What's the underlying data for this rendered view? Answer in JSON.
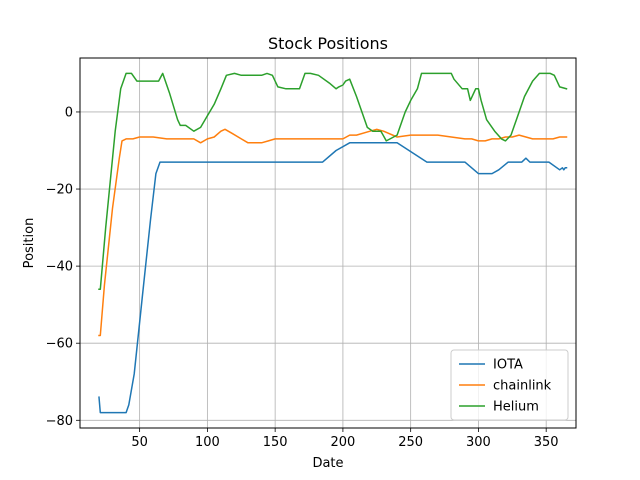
{
  "chart_data": {
    "type": "line",
    "title": "Stock Positions",
    "xlabel": "Date",
    "ylabel": "Position",
    "xlim": [
      6,
      372
    ],
    "ylim": [
      -82,
      14
    ],
    "xticks": [
      50,
      100,
      150,
      200,
      250,
      300,
      350
    ],
    "yticks": [
      -80,
      -60,
      -40,
      -20,
      0
    ],
    "grid": true,
    "legend_position": "lower right",
    "colors": {
      "IOTA": "#1f77b4",
      "chainlink": "#ff7f0e",
      "Helium": "#2ca02c"
    },
    "series": [
      {
        "name": "IOTA",
        "x": [
          20,
          21,
          40,
          42,
          46,
          52,
          58,
          62,
          65,
          67,
          100,
          150,
          185,
          195,
          205,
          240,
          262,
          290,
          300,
          310,
          315,
          322,
          332,
          335,
          338,
          352,
          360,
          362,
          363,
          364,
          365
        ],
        "y": [
          -74,
          -78,
          -78,
          -76,
          -68,
          -48,
          -28,
          -16,
          -13,
          -13,
          -13,
          -13,
          -13,
          -10,
          -8,
          -8,
          -13,
          -13,
          -16,
          -16,
          -15,
          -13,
          -13,
          -12,
          -13,
          -13,
          -15,
          -14.5,
          -15,
          -14.5,
          -14.5
        ]
      },
      {
        "name": "chainlink",
        "x": [
          20,
          21,
          24,
          30,
          35,
          37,
          40,
          45,
          50,
          55,
          60,
          70,
          90,
          95,
          100,
          105,
          110,
          113,
          118,
          125,
          130,
          135,
          140,
          145,
          150,
          170,
          185,
          200,
          205,
          210,
          220,
          225,
          230,
          240,
          250,
          260,
          270,
          280,
          290,
          295,
          300,
          305,
          310,
          315,
          320,
          325,
          330,
          335,
          340,
          345,
          350,
          355,
          360,
          365
        ],
        "y": [
          -58,
          -58,
          -45,
          -25,
          -12,
          -7.5,
          -7,
          -7,
          -6.5,
          -6.5,
          -6.5,
          -7,
          -7,
          -8,
          -7,
          -6.5,
          -5,
          -4.5,
          -5.5,
          -7,
          -8,
          -8,
          -8,
          -7.5,
          -7,
          -7,
          -7,
          -7,
          -6,
          -6,
          -5,
          -4.5,
          -5,
          -6.5,
          -6,
          -6,
          -6,
          -6.5,
          -7,
          -7,
          -7.5,
          -7.5,
          -7,
          -7,
          -6.5,
          -6.5,
          -6,
          -6.5,
          -7,
          -7,
          -7,
          -7,
          -6.5,
          -6.5
        ]
      },
      {
        "name": "Helium",
        "x": [
          20,
          21,
          25,
          32,
          36,
          40,
          44,
          48,
          55,
          60,
          64,
          67,
          72,
          78,
          80,
          84,
          90,
          95,
          100,
          105,
          110,
          114,
          120,
          125,
          140,
          144,
          148,
          152,
          158,
          168,
          172,
          176,
          182,
          190,
          195,
          197,
          200,
          202,
          205,
          210,
          218,
          222,
          228,
          232,
          240,
          246,
          250,
          255,
          258,
          265,
          280,
          282,
          288,
          292,
          294,
          298,
          300,
          302,
          306,
          312,
          317,
          320,
          324,
          328,
          334,
          340,
          345,
          350,
          353,
          356,
          360,
          365
        ],
        "y": [
          -46,
          -46,
          -30,
          -5,
          6,
          10,
          10,
          8,
          8,
          8,
          8,
          10,
          5,
          -2,
          -3.5,
          -3.5,
          -5,
          -4,
          -1,
          2,
          6,
          9.5,
          10,
          9.5,
          9.5,
          10,
          9.5,
          6.5,
          6,
          6,
          10,
          10,
          9.5,
          7.5,
          6,
          6.5,
          7,
          8,
          8.5,
          4,
          -4,
          -5,
          -5,
          -7.5,
          -6,
          0,
          3,
          6,
          10,
          10,
          10,
          8.5,
          6,
          6,
          3,
          6,
          6,
          3,
          -2,
          -5,
          -7,
          -7.5,
          -6,
          -2,
          4,
          8,
          10,
          10,
          10,
          9.5,
          6.5,
          6
        ]
      }
    ]
  }
}
